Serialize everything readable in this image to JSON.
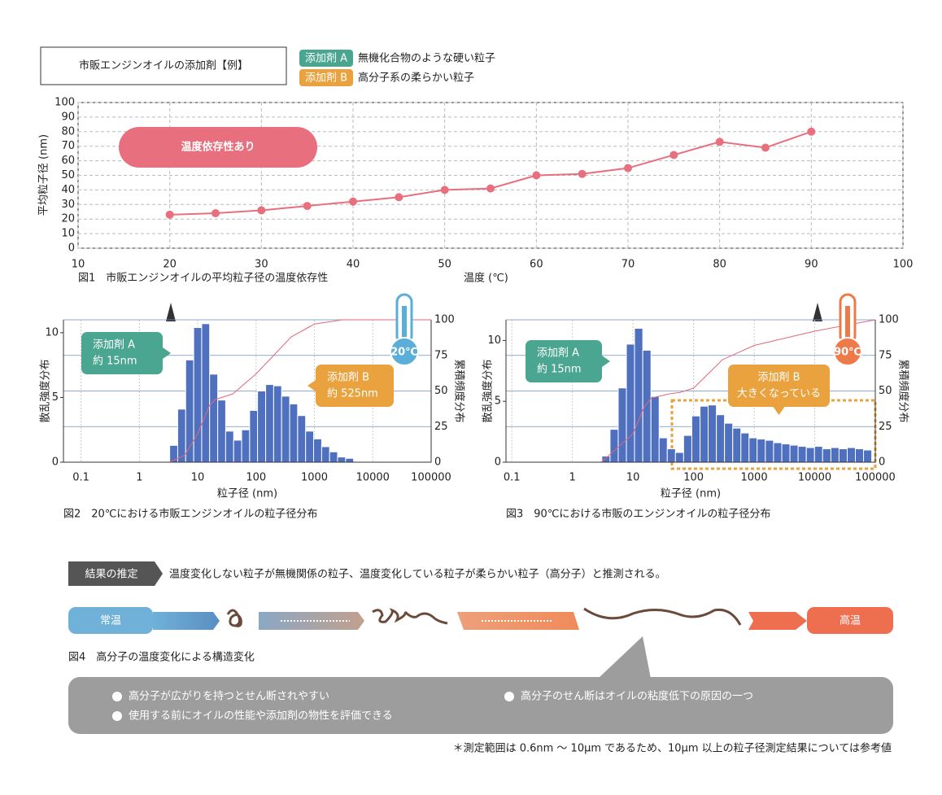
{
  "header": {
    "title": "市販エンジンオイルの添加剤【例】",
    "legend": [
      {
        "badge": "添加剤 A",
        "text": "無機化合物のような硬い粒子",
        "color": "#4aa690"
      },
      {
        "badge": "添加剤 B",
        "text": "高分子系の柔らかい粒子",
        "color": "#eaa23e"
      }
    ]
  },
  "chart_data": [
    {
      "type": "line",
      "title": "図1　市販エンジンオイルの平均粒子径の温度依存性",
      "x_label": "温度 (℃)",
      "y_label": "平均粒子径 (nm)",
      "annotation": "温度依存性あり",
      "x": [
        20,
        25,
        30,
        35,
        40,
        45,
        50,
        55,
        60,
        65,
        70,
        75,
        80,
        85,
        90
      ],
      "values": [
        23,
        24,
        26,
        29,
        32,
        35,
        40,
        41,
        50,
        51,
        55,
        64,
        73,
        69,
        80
      ],
      "color": "#e8707e",
      "xlim": [
        10,
        100
      ],
      "xticks": [
        10,
        20,
        30,
        40,
        50,
        60,
        70,
        80,
        90,
        100
      ],
      "ylim": [
        0,
        100
      ],
      "yticks": [
        0,
        10,
        20,
        30,
        40,
        50,
        60,
        70,
        80,
        90,
        100
      ],
      "grid": true
    },
    {
      "type": "histogram",
      "title": "図2　20℃における市販エンジンオイルの粒子径分布",
      "x_label": "粒子径 (nm)",
      "y_label": "散乱強度分布",
      "y2_label": "累積頻度分布",
      "xscale": "log",
      "xlim": [
        0.05,
        100000
      ],
      "xticks": [
        0.1,
        1,
        10,
        100,
        1000,
        10000,
        100000
      ],
      "ylim": [
        0,
        11
      ],
      "yticks": [
        0,
        5,
        10
      ],
      "y2lim": [
        0,
        100
      ],
      "y2ticks": [
        0,
        25,
        50,
        75,
        100
      ],
      "color": "#4f6fbf",
      "bins": [
        3.31,
        4.54,
        6.22,
        8.53,
        11.7,
        16.0,
        22.0,
        30.1,
        41.3,
        56.6,
        77.6,
        106,
        146,
        200,
        274,
        376,
        515,
        706,
        968,
        1330,
        1820,
        2490,
        3420,
        4690
      ],
      "counts": [
        1.3,
        4.1,
        7.9,
        10.4,
        10.7,
        6.8,
        4.8,
        2.4,
        1.7,
        2.5,
        4.0,
        5.5,
        6.0,
        5.9,
        5.1,
        4.5,
        3.6,
        2.4,
        1.8,
        1.2,
        0.8,
        0.4,
        0.3
      ],
      "cumulative": {
        "x": [
          3.3,
          6,
          10,
          16,
          20,
          40,
          100,
          200,
          400,
          1000,
          3000,
          100000
        ],
        "values": [
          0,
          5,
          20,
          40,
          44,
          48,
          62,
          75,
          88,
          97,
          100,
          100
        ],
        "axis": "y2",
        "color": "#e06a7a"
      },
      "annotations": [
        {
          "lines": [
            "添加剤 A",
            "約 15nm"
          ],
          "color": "#4aa690"
        },
        {
          "lines": [
            "添加剤 B",
            "約 525nm"
          ],
          "color": "#eaa23e"
        }
      ],
      "thermometer": {
        "label": "20℃",
        "color": "#5aaed8"
      }
    },
    {
      "type": "histogram",
      "title": "図3　90℃における市販のエンジンオイルの粒子径分布",
      "x_label": "粒子径 (nm)",
      "y_label": "散乱強度分布",
      "y2_label": "累積頻度分布",
      "xscale": "log",
      "xlim": [
        0.08,
        100000
      ],
      "xticks": [
        0.1,
        1,
        10,
        100,
        1000,
        10000,
        100000
      ],
      "ylim": [
        0,
        11.7
      ],
      "yticks": [
        0,
        5,
        10
      ],
      "y2lim": [
        0,
        100
      ],
      "y2ticks": [
        0,
        25,
        50,
        75,
        100
      ],
      "color": "#4f6fbf",
      "bins": [
        3.06,
        4.18,
        5.7,
        7.78,
        10.6,
        14.5,
        19.8,
        27.0,
        36.8,
        50.2,
        68.5,
        93.5,
        128,
        174,
        238,
        324,
        443,
        604,
        824,
        1120,
        1530,
        2090,
        2860,
        3900,
        5320,
        7260,
        9910,
        13500,
        18500,
        25200,
        34400,
        46900,
        64000,
        87300
      ],
      "counts": [
        0.5,
        2.7,
        6.1,
        9.7,
        11.0,
        9.2,
        5.4,
        2.0,
        1.1,
        0.8,
        2.2,
        3.8,
        4.6,
        4.7,
        3.9,
        3.2,
        2.8,
        2.4,
        2.0,
        1.9,
        1.8,
        1.6,
        1.5,
        1.4,
        1.3,
        1.2,
        1.3,
        1.1,
        1.2,
        1.1,
        1.2,
        1.1,
        1.0
      ],
      "cumulative": {
        "x": [
          3,
          10,
          15,
          20,
          40,
          60,
          100,
          300,
          1000,
          10000,
          100000
        ],
        "values": [
          0,
          20,
          38,
          45,
          48,
          49,
          52,
          72,
          82,
          92,
          100
        ],
        "axis": "y2",
        "color": "#e06a7a"
      },
      "annotations": [
        {
          "lines": [
            "添加剤 A",
            "約 15nm"
          ],
          "color": "#4aa690"
        },
        {
          "lines": [
            "添加剤 B",
            "大きくなっている"
          ],
          "color": "#eaa23e"
        }
      ],
      "thermometer": {
        "label": "90℃",
        "color": "#ee7a4a"
      }
    }
  ],
  "result": {
    "tag": "結果の推定",
    "text": "温度変化しない粒子が無機関係の粒子、温度変化している粒子が柔らかい粒子（高分子）と推測される。"
  },
  "figure4": {
    "start": "常温",
    "end": "高温",
    "caption": "図4　高分子の温度変化による構造変化",
    "notes": [
      "高分子が広がりを持つとせん断されやすい",
      "高分子のせん断はオイルの粘度低下の原因の一つ",
      "使用する前にオイルの性能や添加剤の物性を評価できる"
    ]
  },
  "footnote": "＊測定範囲は 0.6nm ～ 10μm であるため、10μm 以上の粒子径測定結果については参考値"
}
